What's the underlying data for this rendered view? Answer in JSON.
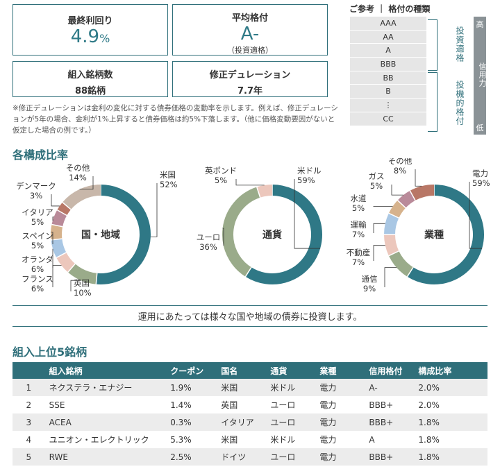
{
  "summary": {
    "yield_label": "最終利回り",
    "yield_value": "4.9",
    "yield_unit": "%",
    "rating_label": "平均格付",
    "rating_value": "A-",
    "rating_sub": "（投資適格）",
    "count_label": "組入銘柄数",
    "count_value": "88銘柄",
    "duration_label": "修正デュレーション",
    "duration_value": "7.7年"
  },
  "note": "※修正デュレーションは金利の変化に対する債券価格の変動率を示します。例えば、修正デュレーションが5年の場合、金利が1%上昇すると債券価格は約5%下落します。（他に価格変動要因がないと仮定した場合の例です。）",
  "reference": {
    "title": "ご参考 ｜ 格付の種類",
    "ratings": [
      "AAA",
      "AA",
      "A",
      "BBB",
      "BB",
      "B",
      "⋮",
      "CC"
    ],
    "investment_grade": "投資適格",
    "speculative_grade": "投機的格付",
    "credit_label": "信用力",
    "high": "高",
    "low": "低"
  },
  "composition_title": "各構成比率",
  "chart_data": [
    {
      "type": "pie",
      "center_label": "国・地域",
      "categories": [
        "米国",
        "英国",
        "フランス",
        "オランダ",
        "スペイン",
        "イタリア",
        "デンマーク",
        "その他"
      ],
      "values": [
        52,
        10,
        6,
        6,
        5,
        5,
        3,
        14
      ],
      "colors": [
        "#2f7886",
        "#9aab8a",
        "#ecc7bc",
        "#a9c7e4",
        "#d6b28c",
        "#b98a99",
        "#b87766",
        "#c8b7aa"
      ]
    },
    {
      "type": "pie",
      "center_label": "通貨",
      "categories": [
        "米ドル",
        "ユーロ",
        "英ポンド"
      ],
      "values": [
        59,
        36,
        5
      ],
      "colors": [
        "#2f7886",
        "#9aab8a",
        "#ecc7bc"
      ]
    },
    {
      "type": "pie",
      "center_label": "業種",
      "categories": [
        "電力",
        "通信",
        "不動産",
        "運輸",
        "水道",
        "ガス",
        "その他"
      ],
      "values": [
        59,
        9,
        7,
        7,
        5,
        5,
        8
      ],
      "colors": [
        "#2f7886",
        "#9aab8a",
        "#ecc7bc",
        "#a9c7e4",
        "#d6b28c",
        "#b98a99",
        "#b87766"
      ]
    }
  ],
  "caption": "運用にあたっては様々な国や地域の債券に投資します。",
  "top5": {
    "title": "組入上位5銘柄",
    "headers": [
      "",
      "組入銘柄",
      "クーポン",
      "国名",
      "通貨",
      "業種",
      "信用格付",
      "構成比率"
    ],
    "rows": [
      [
        "1",
        "ネクステラ・エナジー",
        "1.9%",
        "米国",
        "米ドル",
        "電力",
        "A-",
        "2.0%"
      ],
      [
        "2",
        "SSE",
        "1.4%",
        "英国",
        "ユーロ",
        "電力",
        "BBB+",
        "2.0%"
      ],
      [
        "3",
        "ACEA",
        "0.3%",
        "イタリア",
        "ユーロ",
        "電力",
        "BBB+",
        "1.8%"
      ],
      [
        "4",
        "ユニオン・エレクトリック",
        "5.3%",
        "米国",
        "米ドル",
        "電力",
        "A",
        "1.8%"
      ],
      [
        "5",
        "RWE",
        "2.5%",
        "ドイツ",
        "ユーロ",
        "電力",
        "BBB+",
        "1.8%"
      ]
    ]
  }
}
